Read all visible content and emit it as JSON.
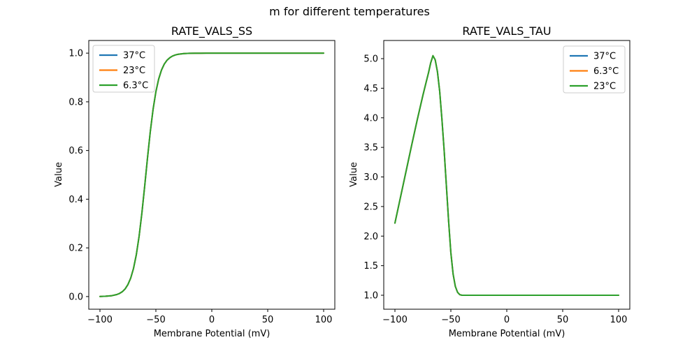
{
  "figure": {
    "suptitle": "m for different temperatures",
    "background": "#ffffff"
  },
  "chart_data": [
    {
      "type": "line",
      "title": "RATE_VALS_SS",
      "xlabel": "Membrane Potential (mV)",
      "ylabel": "Value",
      "xlim": [
        -110,
        110
      ],
      "ylim": [
        -0.052,
        1.052
      ],
      "xticks": [
        -100,
        -50,
        0,
        50,
        100
      ],
      "xtick_labels": [
        "−100",
        "−50",
        "0",
        "50",
        "100"
      ],
      "yticks": [
        0.0,
        0.2,
        0.4,
        0.6,
        0.8,
        1.0
      ],
      "ytick_labels": [
        "0.0",
        "0.2",
        "0.4",
        "0.6",
        "0.8",
        "1.0"
      ],
      "grid": false,
      "note": "All three temperature series overlap exactly; only the last-drawn green curve is visible. Sigmoid with half-activation near -59 mV.",
      "legend": {
        "position": "upper left",
        "entries": [
          {
            "label": "37°C",
            "color": "#1f77b4"
          },
          {
            "label": "23°C",
            "color": "#ff7f0e"
          },
          {
            "label": "6.3°C",
            "color": "#2ca02c"
          }
        ]
      },
      "x": [
        -100,
        -95,
        -90,
        -85,
        -82.5,
        -80,
        -77.5,
        -75,
        -72.5,
        -70,
        -67.5,
        -65,
        -62.5,
        -60,
        -57.5,
        -55,
        -52.5,
        -50,
        -47.5,
        -45,
        -42.5,
        -40,
        -37.5,
        -35,
        -32.5,
        -30,
        -25,
        -20,
        -15,
        -10,
        -5,
        0,
        10,
        20,
        30,
        40,
        50,
        60,
        70,
        80,
        90,
        100
      ],
      "series": [
        {
          "name": "37°C",
          "color": "#1f77b4",
          "y": [
            0.0005,
            0.0013,
            0.0032,
            0.0081,
            0.0127,
            0.0201,
            0.0315,
            0.0491,
            0.0759,
            0.1154,
            0.1718,
            0.2477,
            0.3434,
            0.4539,
            0.569,
            0.6772,
            0.7692,
            0.8411,
            0.8937,
            0.9305,
            0.955,
            0.9712,
            0.9816,
            0.9884,
            0.9927,
            0.9954,
            0.9982,
            0.9993,
            0.9997,
            0.9999,
            1.0,
            1.0,
            1.0,
            1.0,
            1.0,
            1.0,
            1.0,
            1.0,
            1.0,
            1.0,
            1.0,
            1.0
          ]
        },
        {
          "name": "23°C",
          "color": "#ff7f0e",
          "y": [
            0.0005,
            0.0013,
            0.0032,
            0.0081,
            0.0127,
            0.0201,
            0.0315,
            0.0491,
            0.0759,
            0.1154,
            0.1718,
            0.2477,
            0.3434,
            0.4539,
            0.569,
            0.6772,
            0.7692,
            0.8411,
            0.8937,
            0.9305,
            0.955,
            0.9712,
            0.9816,
            0.9884,
            0.9927,
            0.9954,
            0.9982,
            0.9993,
            0.9997,
            0.9999,
            1.0,
            1.0,
            1.0,
            1.0,
            1.0,
            1.0,
            1.0,
            1.0,
            1.0,
            1.0,
            1.0,
            1.0
          ]
        },
        {
          "name": "6.3°C",
          "color": "#2ca02c",
          "y": [
            0.0005,
            0.0013,
            0.0032,
            0.0081,
            0.0127,
            0.0201,
            0.0315,
            0.0491,
            0.0759,
            0.1154,
            0.1718,
            0.2477,
            0.3434,
            0.4539,
            0.569,
            0.6772,
            0.7692,
            0.8411,
            0.8937,
            0.9305,
            0.955,
            0.9712,
            0.9816,
            0.9884,
            0.9927,
            0.9954,
            0.9982,
            0.9993,
            0.9997,
            0.9999,
            1.0,
            1.0,
            1.0,
            1.0,
            1.0,
            1.0,
            1.0,
            1.0,
            1.0,
            1.0,
            1.0,
            1.0
          ]
        }
      ]
    },
    {
      "type": "line",
      "title": "RATE_VALS_TAU",
      "xlabel": "Membrane Potential (mV)",
      "ylabel": "Value",
      "xlim": [
        -110,
        110
      ],
      "ylim": [
        0.764,
        5.307
      ],
      "xticks": [
        -100,
        -50,
        0,
        50,
        100
      ],
      "xtick_labels": [
        "−100",
        "−50",
        "0",
        "50",
        "100"
      ],
      "yticks": [
        1.0,
        1.5,
        2.0,
        2.5,
        3.0,
        3.5,
        4.0,
        4.5,
        5.0
      ],
      "ytick_labels": [
        "1.0",
        "1.5",
        "2.0",
        "2.5",
        "3.0",
        "3.5",
        "4.0",
        "4.5",
        "5.0"
      ],
      "grid": false,
      "note": "All three temperature series overlap exactly; only the last-drawn green curve is visible. Rises from ~2.2 at -100 mV to a peak of ~5.05 near -66 mV, then falls to a flat floor of 1.0 from about -40 mV onward.",
      "legend": {
        "position": "upper right",
        "entries": [
          {
            "label": "37°C",
            "color": "#1f77b4"
          },
          {
            "label": "6.3°C",
            "color": "#ff7f0e"
          },
          {
            "label": "23°C",
            "color": "#2ca02c"
          }
        ]
      },
      "x": [
        -100,
        -95,
        -90,
        -85,
        -80,
        -75,
        -72,
        -70,
        -68,
        -66,
        -64,
        -62,
        -60,
        -58,
        -56,
        -55,
        -54,
        -52,
        -50,
        -48,
        -46,
        -44,
        -42,
        -40,
        -38,
        -35,
        -30,
        -25,
        -20,
        -15,
        -10,
        -5,
        0,
        10,
        20,
        30,
        40,
        50,
        60,
        70,
        80,
        90,
        100
      ],
      "series": [
        {
          "name": "37°C",
          "color": "#1f77b4",
          "y": [
            2.22,
            2.66,
            3.1,
            3.54,
            3.97,
            4.38,
            4.61,
            4.76,
            4.93,
            5.05,
            4.98,
            4.78,
            4.45,
            3.98,
            3.45,
            3.15,
            2.85,
            2.25,
            1.72,
            1.36,
            1.15,
            1.05,
            1.01,
            1.0,
            1.0,
            1.0,
            1.0,
            1.0,
            1.0,
            1.0,
            1.0,
            1.0,
            1.0,
            1.0,
            1.0,
            1.0,
            1.0,
            1.0,
            1.0,
            1.0,
            1.0,
            1.0,
            1.0
          ]
        },
        {
          "name": "6.3°C",
          "color": "#ff7f0e",
          "y": [
            2.22,
            2.66,
            3.1,
            3.54,
            3.97,
            4.38,
            4.61,
            4.76,
            4.93,
            5.05,
            4.98,
            4.78,
            4.45,
            3.98,
            3.45,
            3.15,
            2.85,
            2.25,
            1.72,
            1.36,
            1.15,
            1.05,
            1.01,
            1.0,
            1.0,
            1.0,
            1.0,
            1.0,
            1.0,
            1.0,
            1.0,
            1.0,
            1.0,
            1.0,
            1.0,
            1.0,
            1.0,
            1.0,
            1.0,
            1.0,
            1.0,
            1.0,
            1.0
          ]
        },
        {
          "name": "23°C",
          "color": "#2ca02c",
          "y": [
            2.22,
            2.66,
            3.1,
            3.54,
            3.97,
            4.38,
            4.61,
            4.76,
            4.93,
            5.05,
            4.98,
            4.78,
            4.45,
            3.98,
            3.45,
            3.15,
            2.85,
            2.25,
            1.72,
            1.36,
            1.15,
            1.05,
            1.01,
            1.0,
            1.0,
            1.0,
            1.0,
            1.0,
            1.0,
            1.0,
            1.0,
            1.0,
            1.0,
            1.0,
            1.0,
            1.0,
            1.0,
            1.0,
            1.0,
            1.0,
            1.0,
            1.0,
            1.0
          ]
        }
      ]
    }
  ]
}
